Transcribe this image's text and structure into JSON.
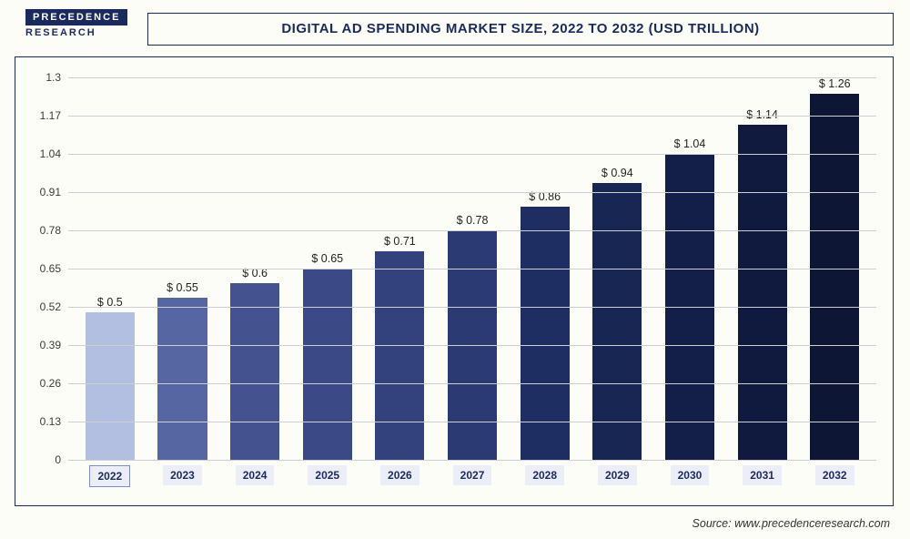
{
  "logo": {
    "top": "PRECEDENCE",
    "bot": "RESEARCH"
  },
  "title": "DIGITAL AD SPENDING MARKET SIZE, 2022 TO 2032 (USD TRILLION)",
  "source": "Source: www.precedenceresearch.com",
  "chart": {
    "type": "bar",
    "background_color": "#fdfdf8",
    "border_color": "#1b2a5e",
    "grid_color": "#cfcfd3",
    "title_color": "#1b2a5e",
    "title_fontsize": 15,
    "ylabel_fontsize": 12,
    "xlabel_fontsize": 12,
    "value_label_fontsize": 12.5,
    "ylim": [
      0,
      1.3
    ],
    "ytick_step": 0.13,
    "yticks": [
      0,
      0.13,
      0.26,
      0.39,
      0.52,
      0.65,
      0.78,
      0.91,
      1.04,
      1.17,
      1.3
    ],
    "categories": [
      "2022",
      "2023",
      "2024",
      "2025",
      "2026",
      "2027",
      "2028",
      "2029",
      "2030",
      "2031",
      "2032"
    ],
    "labels": [
      "$ 0.5",
      "$ 0.55",
      "$ 0.6",
      "$ 0.65",
      "$ 0.71",
      "$ 0.78",
      "$ 0.86",
      "$ 0.94",
      "$ 1.04",
      "$ 1.14",
      "$ 1.26"
    ],
    "values": [
      0.5,
      0.55,
      0.6,
      0.65,
      0.71,
      0.78,
      0.86,
      0.94,
      1.04,
      1.14,
      1.26
    ],
    "bar_colors": [
      "#b3bfe0",
      "#5666a3",
      "#44538f",
      "#3b4a86",
      "#33427d",
      "#2b3a73",
      "#1f2e62",
      "#182654",
      "#131f49",
      "#10193e",
      "#0e1636"
    ],
    "bar_width": 0.68,
    "xlabel_bg": "#eceef7",
    "xlabel_color": "#1b2a5e",
    "highlight_first_border": "#7e8fc4"
  }
}
